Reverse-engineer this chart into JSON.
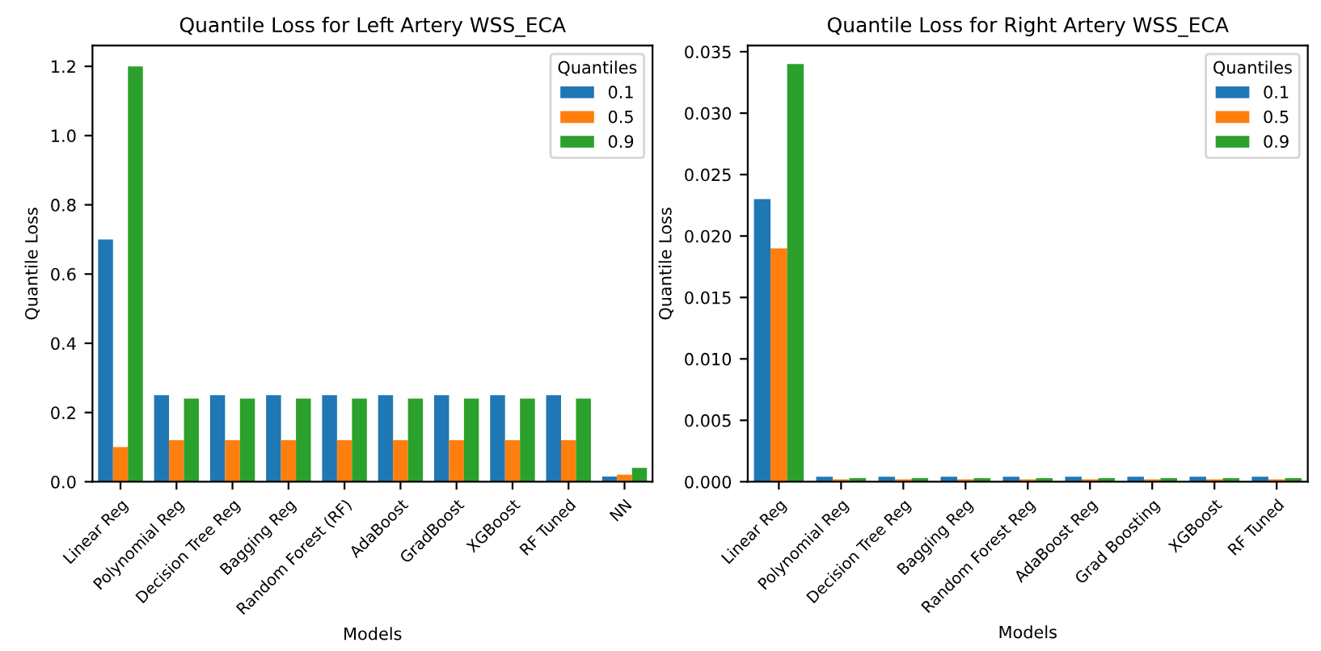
{
  "chart_data": [
    {
      "type": "bar",
      "title": "Quantile Loss for Left Artery WSS_ECA",
      "xlabel": "Models",
      "ylabel": "Quantile Loss",
      "legend_title": "Quantiles",
      "legend": "top right",
      "grid": false,
      "categories": [
        "Linear Reg",
        "Polynomial Reg",
        "Decision Tree Reg",
        "Bagging Reg",
        "Random Forest (RF)",
        "AdaBoost",
        "GradBoost",
        "XGBoost",
        "RF Tuned",
        "NN"
      ],
      "series": [
        {
          "name": "0.1",
          "color": "#1f77b4",
          "values": [
            0.7,
            0.25,
            0.25,
            0.25,
            0.25,
            0.25,
            0.25,
            0.25,
            0.25,
            0.015
          ]
        },
        {
          "name": "0.5",
          "color": "#ff7f0e",
          "values": [
            0.1,
            0.12,
            0.12,
            0.12,
            0.12,
            0.12,
            0.12,
            0.12,
            0.12,
            0.02
          ]
        },
        {
          "name": "0.9",
          "color": "#2ca02c",
          "values": [
            1.2,
            0.24,
            0.24,
            0.24,
            0.24,
            0.24,
            0.24,
            0.24,
            0.24,
            0.04
          ]
        }
      ],
      "ylim": [
        0,
        1.26
      ],
      "yticks": [
        {
          "value": 0,
          "label": "0.0"
        },
        0.2,
        0.4,
        0.6,
        0.8,
        {
          "value": 1,
          "label": "1.0"
        },
        1.2
      ]
    },
    {
      "type": "bar",
      "title": "Quantile Loss for Right Artery WSS_ECA",
      "xlabel": "Models",
      "ylabel": "Quantile Loss",
      "legend_title": "Quantiles",
      "legend": "top right",
      "grid": false,
      "categories": [
        "Linear Reg",
        "Polynomial Reg",
        "Decision Tree Reg",
        "Bagging Reg",
        "Random Forest Reg",
        "AdaBoost Reg",
        "Grad Boosting",
        "XGBoost",
        "RF Tuned"
      ],
      "series": [
        {
          "name": "0.1",
          "color": "#1f77b4",
          "values": [
            0.023,
            0.0004,
            0.0004,
            0.0004,
            0.0004,
            0.0004,
            0.0004,
            0.0004,
            0.0004
          ]
        },
        {
          "name": "0.5",
          "color": "#ff7f0e",
          "values": [
            0.019,
            0.0002,
            0.0002,
            0.0002,
            0.0002,
            0.0002,
            0.0002,
            0.0002,
            0.0002
          ]
        },
        {
          "name": "0.9",
          "color": "#2ca02c",
          "values": [
            0.034,
            0.0003,
            0.0003,
            0.0003,
            0.0003,
            0.0003,
            0.0003,
            0.0003,
            0.0003
          ]
        }
      ],
      "ylim": [
        0,
        0.0355
      ],
      "yticks": [
        {
          "value": 0,
          "label": "0.000"
        },
        {
          "value": 0.005,
          "label": "0.005"
        },
        {
          "value": 0.01,
          "label": "0.010"
        },
        {
          "value": 0.015,
          "label": "0.015"
        },
        {
          "value": 0.02,
          "label": "0.020"
        },
        {
          "value": 0.025,
          "label": "0.025"
        },
        {
          "value": 0.03,
          "label": "0.030"
        },
        {
          "value": 0.035,
          "label": "0.035"
        }
      ]
    }
  ]
}
